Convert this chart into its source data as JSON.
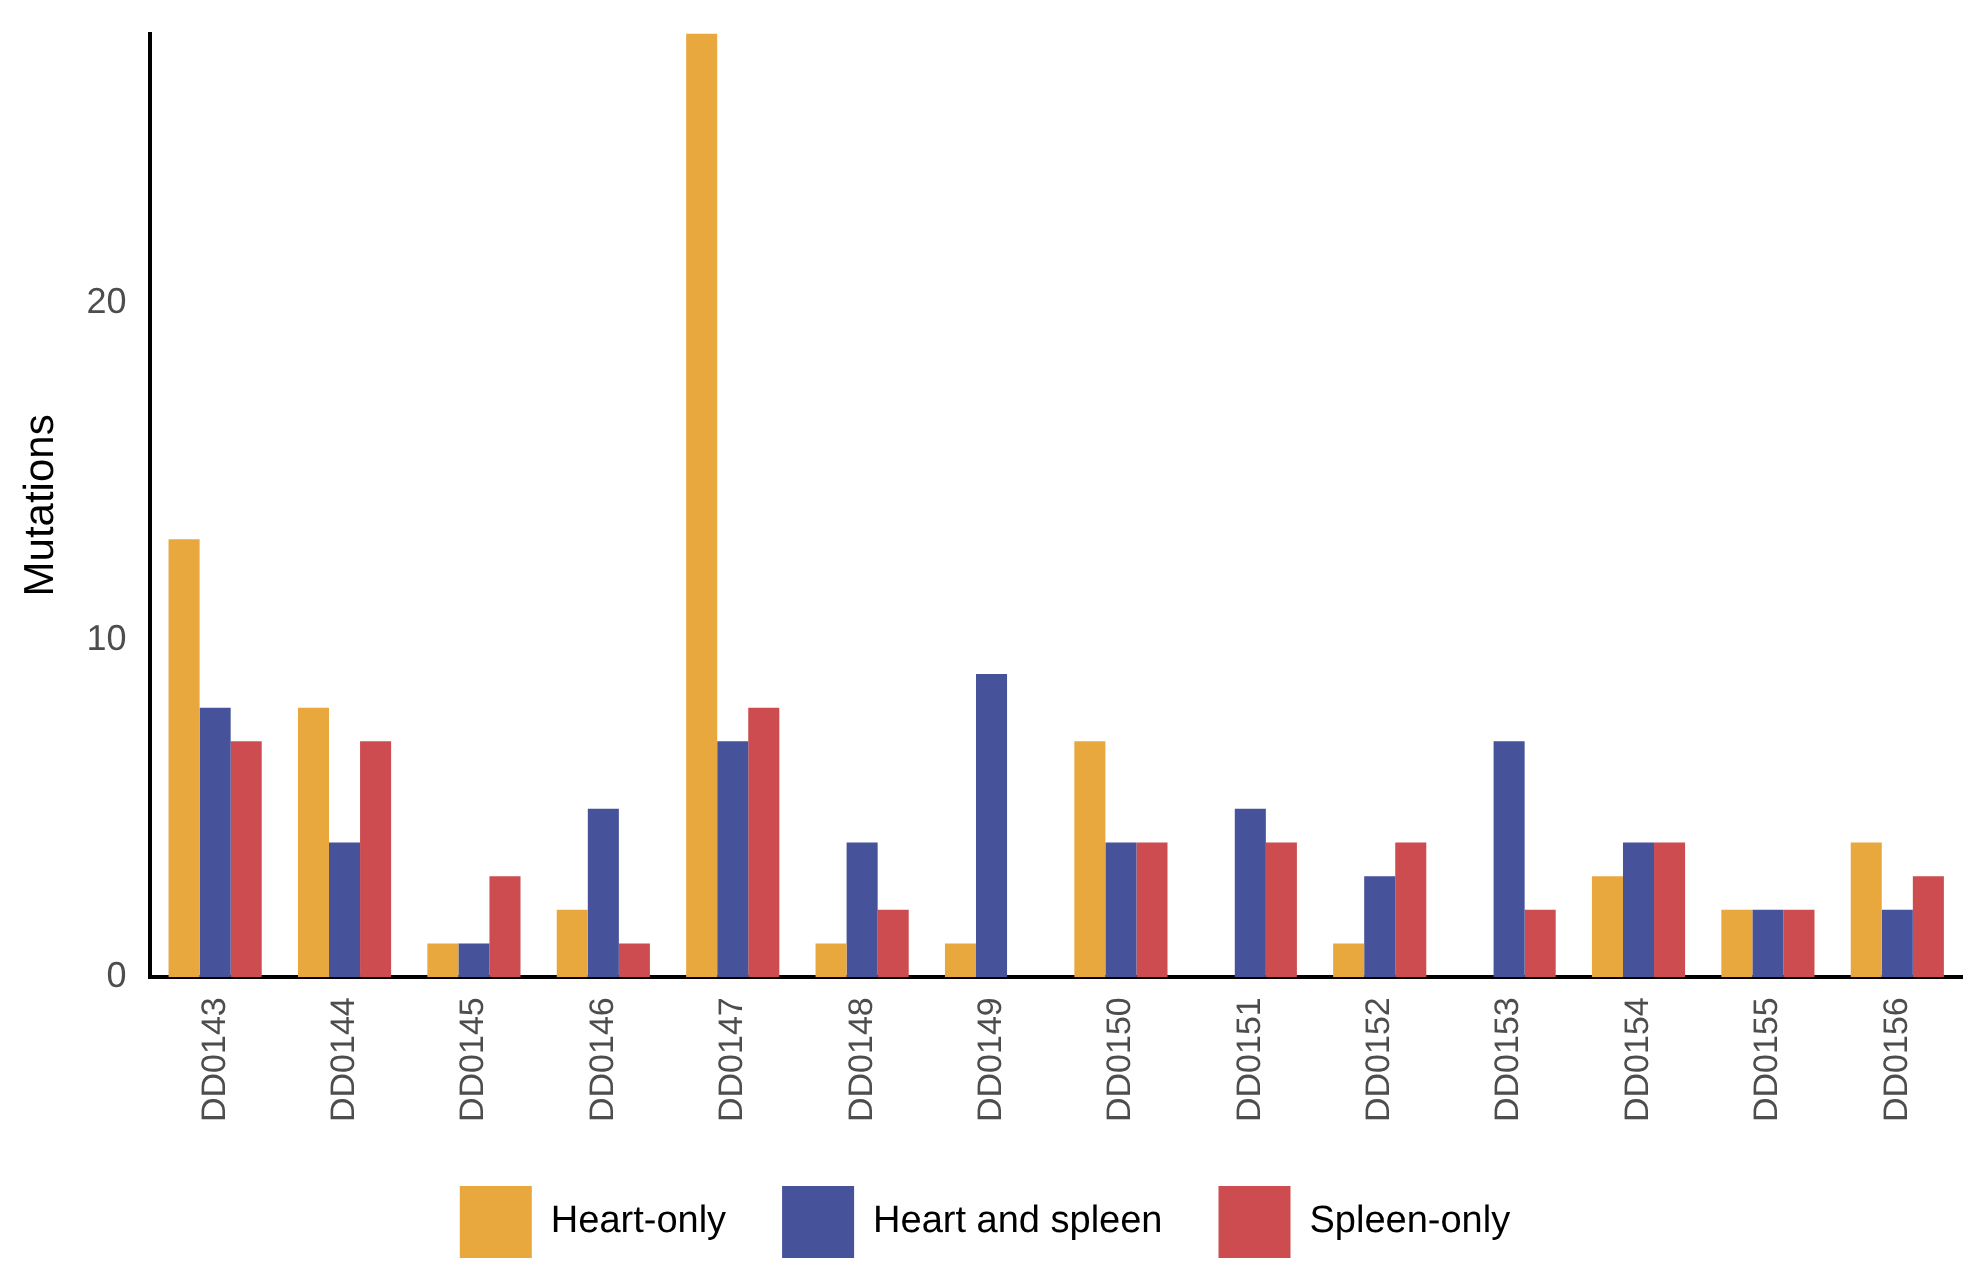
{
  "chart_data": {
    "type": "bar",
    "ylabel": "Mutations",
    "categories": [
      "DD0143",
      "DD0144",
      "DD0145",
      "DD0146",
      "DD0147",
      "DD0148",
      "DD0149",
      "DD0150",
      "DD0151",
      "DD0152",
      "DD0153",
      "DD0154",
      "DD0155",
      "DD0156"
    ],
    "series": [
      {
        "name": "Heart-only",
        "color": "#e8a83e",
        "values": [
          13,
          8,
          1,
          2,
          28,
          1,
          1,
          7,
          null,
          1,
          null,
          3,
          2,
          4
        ]
      },
      {
        "name": "Heart and spleen",
        "color": "#46529a",
        "values": [
          8,
          4,
          1,
          5,
          7,
          4,
          9,
          4,
          5,
          3,
          7,
          4,
          2,
          2
        ]
      },
      {
        "name": "Spleen-only",
        "color": "#cc4c4f",
        "values": [
          7,
          7,
          3,
          1,
          8,
          2,
          null,
          4,
          4,
          4,
          2,
          4,
          2,
          3
        ]
      }
    ],
    "ylim": [
      0,
      28
    ],
    "yticks": [
      0,
      10,
      20
    ],
    "grid": false,
    "legend": "bottom"
  }
}
